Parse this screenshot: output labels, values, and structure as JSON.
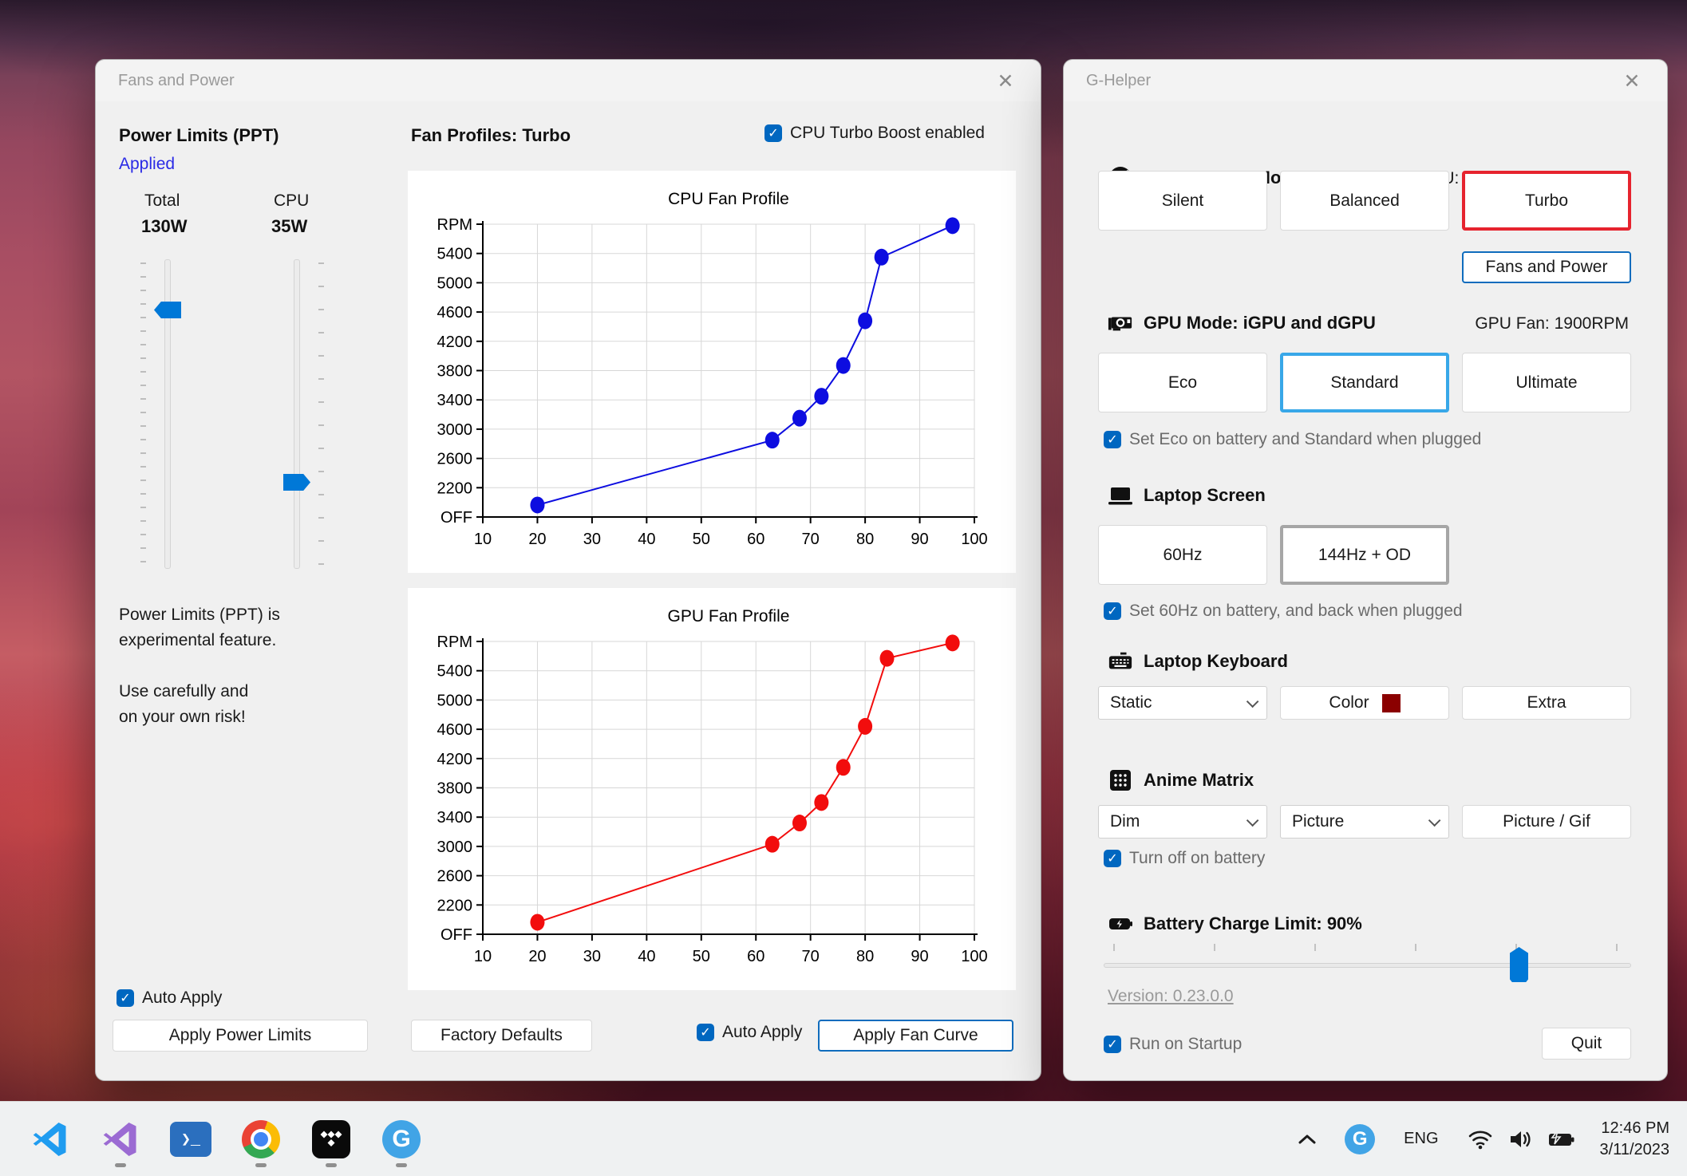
{
  "fans": {
    "title": "Fans and Power",
    "power": {
      "heading": "Power Limits (PPT)",
      "status": "Applied",
      "total_label": "Total",
      "total_value": "130W",
      "cpu_label": "CPU",
      "cpu_value": "35W",
      "warning1": "Power Limits (PPT) is",
      "warning2": "experimental feature.",
      "warning3": "Use carefully and",
      "warning4": "on your own risk!",
      "auto_apply": "Auto Apply",
      "apply_button": "Apply Power Limits"
    },
    "fan": {
      "heading": "Fan Profiles: Turbo",
      "turbo_boost": "CPU Turbo Boost enabled",
      "factory_defaults": "Factory Defaults",
      "auto_apply": "Auto Apply",
      "apply_button": "Apply Fan Curve"
    }
  },
  "chart_data": [
    {
      "type": "line",
      "title": "CPU Fan Profile",
      "color": "#0d0de0",
      "x_ticks": [
        10,
        20,
        30,
        40,
        50,
        60,
        70,
        80,
        90,
        100
      ],
      "y_ticks": [
        "OFF",
        "2200",
        "2600",
        "3000",
        "3400",
        "3800",
        "4200",
        "4600",
        "5000",
        "5400",
        "RPM"
      ],
      "x_range": [
        10,
        100
      ],
      "xlabel": "",
      "ylabel": "RPM",
      "grid": true,
      "points": [
        [
          20,
          900
        ],
        [
          63,
          2850
        ],
        [
          68,
          3150
        ],
        [
          72,
          3450
        ],
        [
          76,
          3870
        ],
        [
          80,
          4480
        ],
        [
          83,
          5350
        ],
        [
          96,
          5780
        ]
      ]
    },
    {
      "type": "line",
      "title": "GPU Fan Profile",
      "color": "#f20d0d",
      "x_ticks": [
        10,
        20,
        30,
        40,
        50,
        60,
        70,
        80,
        90,
        100
      ],
      "y_ticks": [
        "OFF",
        "2200",
        "2600",
        "3000",
        "3400",
        "3800",
        "4200",
        "4600",
        "5000",
        "5400",
        "RPM"
      ],
      "x_range": [
        10,
        100
      ],
      "xlabel": "",
      "ylabel": "RPM",
      "grid": true,
      "points": [
        [
          20,
          900
        ],
        [
          63,
          3030
        ],
        [
          68,
          3320
        ],
        [
          72,
          3600
        ],
        [
          76,
          4080
        ],
        [
          80,
          4640
        ],
        [
          84,
          5570
        ],
        [
          96,
          5780
        ]
      ]
    }
  ],
  "gh": {
    "title": "G-Helper",
    "performance": {
      "heading": "Performance Mode",
      "status": "CPU: 47°C -  Fan: 1800RPM",
      "modes": [
        "Silent",
        "Balanced",
        "Turbo"
      ],
      "selected": "Turbo",
      "fans_button": "Fans and Power"
    },
    "gpu": {
      "heading": "GPU Mode: iGPU and dGPU",
      "status": "GPU Fan: 1900RPM",
      "modes": [
        "Eco",
        "Standard",
        "Ultimate"
      ],
      "selected": "Standard",
      "checkbox": "Set Eco on battery and Standard when plugged"
    },
    "screen": {
      "heading": "Laptop Screen",
      "modes": [
        "60Hz",
        "144Hz + OD"
      ],
      "selected": "144Hz + OD",
      "checkbox": "Set 60Hz on battery, and back when plugged"
    },
    "keyboard": {
      "heading": "Laptop Keyboard",
      "mode": "Static",
      "color_label": "Color",
      "color_value": "#8b0000",
      "extra_button": "Extra"
    },
    "anime": {
      "heading": "Anime Matrix",
      "brightness": "Dim",
      "mode": "Picture",
      "button": "Picture / Gif",
      "checkbox": "Turn off on battery"
    },
    "battery": {
      "heading": "Battery Charge Limit: 90%",
      "percent": 90
    },
    "version": "Version: 0.23.0.0",
    "startup": "Run on Startup",
    "quit": "Quit"
  },
  "taskbar": {
    "apps": [
      {
        "name": "vscode",
        "running": false
      },
      {
        "name": "visual-studio",
        "running": true
      },
      {
        "name": "powershell",
        "running": false
      },
      {
        "name": "chrome",
        "running": true
      },
      {
        "name": "tidal",
        "running": true
      },
      {
        "name": "g-helper",
        "running": true
      }
    ],
    "powershell_glyph": "❯_",
    "g_letter": "G",
    "tray": {
      "lang": "ENG",
      "time": "12:46 PM",
      "date": "3/11/2023"
    }
  },
  "colors": {
    "accent": "#0067c0",
    "selected_red": "#e6232e",
    "selected_blue": "#38a7e8",
    "selected_gray": "#a6a6a6",
    "keyboard_swatch": "#8b0000"
  }
}
